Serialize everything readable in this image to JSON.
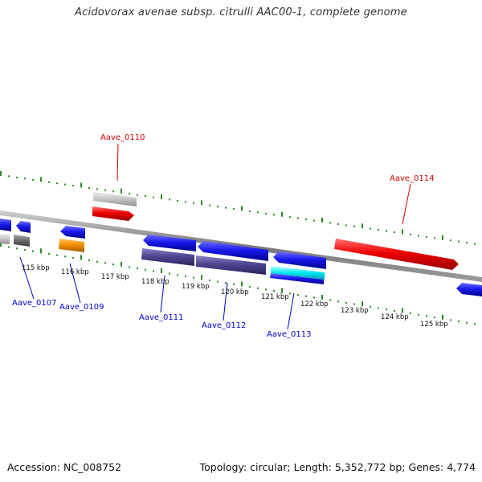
{
  "title": "Acidovorax avenae subsp. citrulli AAC00-1, complete genome",
  "footer": {
    "accession": "Accession: NC_008752",
    "topology": "Topology: circular; Length: 5,352,772 bp; Genes: 4,774"
  },
  "colors": {
    "forward_label": "#d00000",
    "reverse_label": "#0000cc",
    "scale_ticks": "#2a8a2a",
    "backbone": "#808080"
  },
  "scale_labels": [
    "115 kbp",
    "116 kbp",
    "117 kbp",
    "118 kbp",
    "119 kbp",
    "120 kbp",
    "121 kbp",
    "122 kbp",
    "123 kbp",
    "124 kbp",
    "125 kbp"
  ],
  "gene_labels": [
    {
      "text": "Aave_0110",
      "strand": "forward"
    },
    {
      "text": "Aave_0114",
      "strand": "forward"
    },
    {
      "text": "Aave_0107",
      "strand": "reverse"
    },
    {
      "text": "Aave_0109",
      "strand": "reverse"
    },
    {
      "text": "Aave_0111",
      "strand": "reverse"
    },
    {
      "text": "Aave_0112",
      "strand": "reverse"
    },
    {
      "text": "Aave_0113",
      "strand": "reverse"
    }
  ]
}
